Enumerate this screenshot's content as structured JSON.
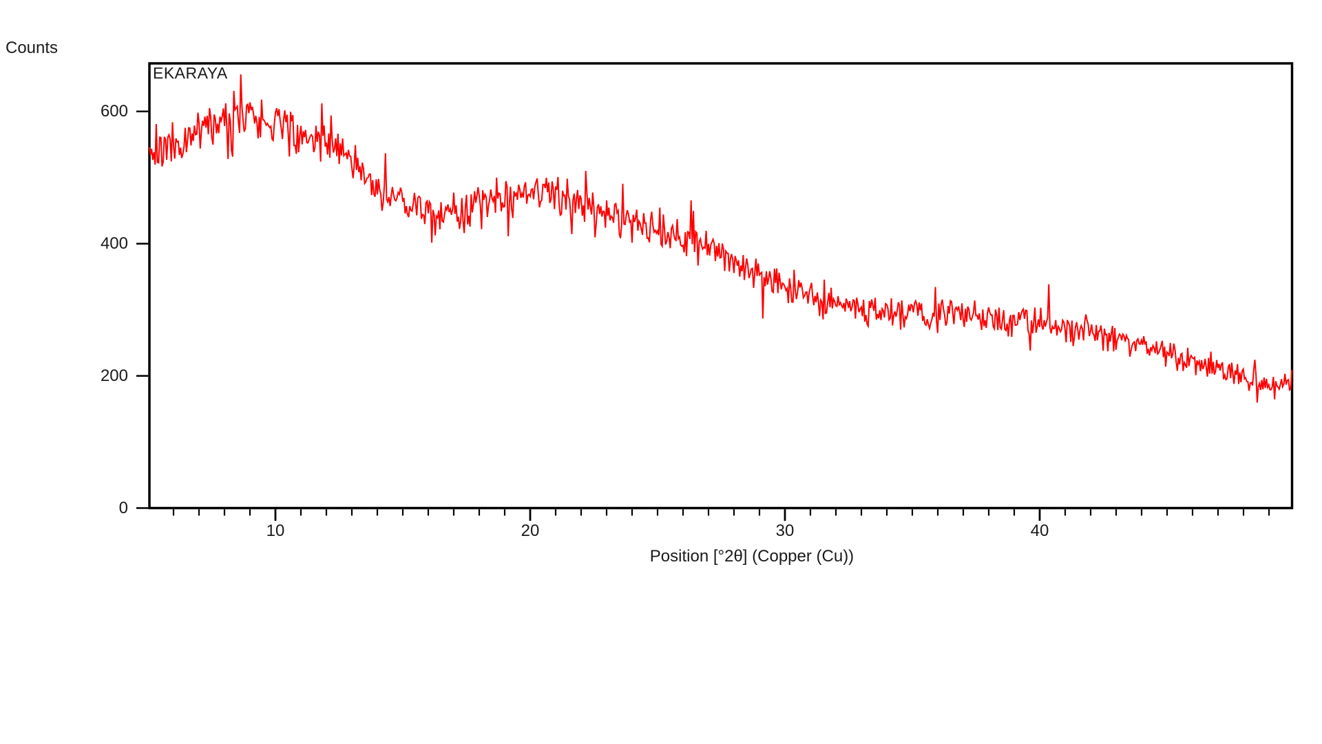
{
  "page": {
    "background": "#ffffff",
    "text_color": "#1a1a1a"
  },
  "chart_data": {
    "type": "line",
    "title": "EKARAYA",
    "xlabel": "Position [°2θ] (Copper (Cu))",
    "ylabel": "Counts",
    "xlim": [
      5.05,
      49.9
    ],
    "ylim": [
      0,
      672
    ],
    "grid": false,
    "legend": "none",
    "x_major_ticks": [
      10,
      20,
      30,
      40
    ],
    "x_tick_labels": [
      "10",
      "20",
      "30",
      "40"
    ],
    "x_minor_ticks": {
      "start": 6,
      "end": 49,
      "step": 1
    },
    "y_ticks": [
      0,
      200,
      400,
      600
    ],
    "y_tick_labels": [
      "0",
      "200",
      "400",
      "600"
    ],
    "axis_color": "#000000",
    "series": [
      {
        "name": "EKARAYA",
        "color": "#ff0000",
        "description": "Noisy amorphous XRD diffractogram: broad hump peaking ~595 counts near 8.5°2θ, local minimum ~446 near 17°, secondary broad hump ~480 near 20.5°, monotonic decline to plateau ~290 counts at 33-38°, tailing off to ~181 counts at 50°",
        "trend_x": [
          5,
          6,
          7,
          8,
          8.5,
          9,
          10,
          11,
          12,
          13,
          14,
          15,
          16,
          17,
          18,
          19,
          20,
          21,
          22,
          23,
          24,
          25,
          26,
          27,
          28,
          29,
          30,
          31,
          32,
          33,
          34,
          35,
          36,
          37,
          38,
          39,
          40,
          41,
          42,
          43,
          44,
          45,
          46,
          47,
          48,
          49,
          50
        ],
        "trend_y": [
          538,
          550,
          565,
          588,
          595,
          592,
          583,
          568,
          555,
          527,
          488,
          462,
          450,
          446,
          458,
          472,
          480,
          476,
          464,
          448,
          434,
          421,
          408,
          392,
          374,
          354,
          337,
          321,
          308,
          300,
          296,
          294,
          292,
          290,
          288,
          285,
          280,
          273,
          265,
          256,
          246,
          235,
          223,
          211,
          199,
          188,
          181
        ],
        "points_per_degree": 22,
        "noise": {
          "seed": 20,
          "sqrt_factor": 1.25,
          "mix": 1.05,
          "spike_probability": 0.035,
          "spike_scale": [
            1.0,
            2.2
          ],
          "spikes": [
            {
              "x": 8.66,
              "dy": 62
            },
            {
              "x": 11.8,
              "dy": 55
            },
            {
              "x": 16.15,
              "dy": -48
            },
            {
              "x": 26.4,
              "dy": 48
            },
            {
              "x": 40.35,
              "dy": 61
            }
          ]
        }
      }
    ]
  }
}
